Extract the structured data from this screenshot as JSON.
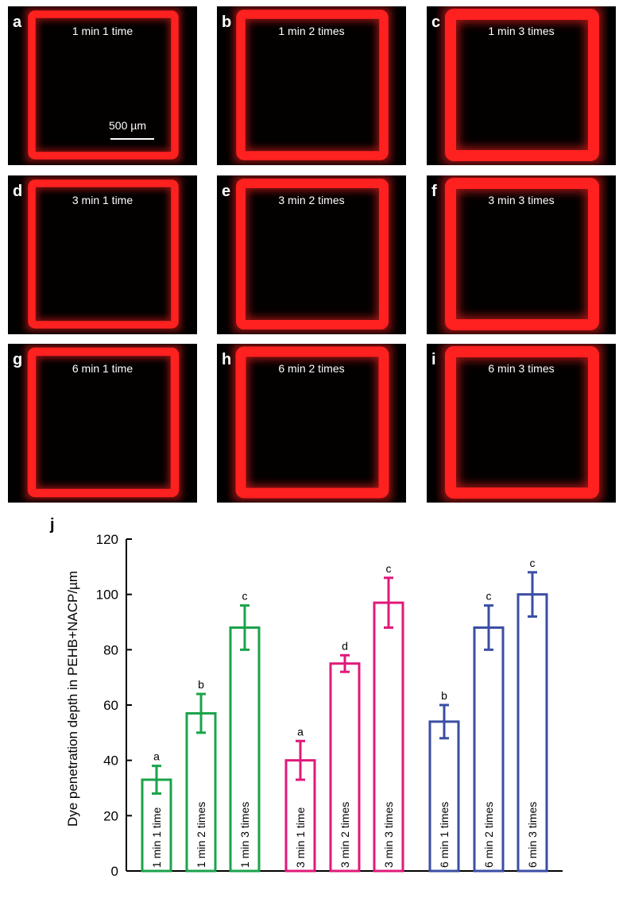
{
  "figure": {
    "panels": [
      {
        "letter": "a",
        "condition": "1 min 1 time",
        "intensity": 0.55
      },
      {
        "letter": "b",
        "condition": "1 min 2 times",
        "intensity": 0.75
      },
      {
        "letter": "c",
        "condition": "1 min 3 times",
        "intensity": 1.0
      },
      {
        "letter": "d",
        "condition": "3 min 1 time",
        "intensity": 0.55
      },
      {
        "letter": "e",
        "condition": "3 min 2 times",
        "intensity": 0.8
      },
      {
        "letter": "f",
        "condition": "3 min 3 times",
        "intensity": 1.0
      },
      {
        "letter": "g",
        "condition": "6 min 1 time",
        "intensity": 0.65
      },
      {
        "letter": "h",
        "condition": "6 min 2 times",
        "intensity": 0.9
      },
      {
        "letter": "i",
        "condition": "6 min 3 times",
        "intensity": 1.0
      }
    ],
    "scale_bar_label": "500 µm",
    "chart_letter": "j",
    "colors": {
      "fluorescence": "#ff2020",
      "panel_bg": "#030000"
    }
  },
  "chart_data": {
    "type": "bar",
    "ylabel": "Dye penetration depth in PEHB+NACP/µm",
    "ylim": [
      0,
      120
    ],
    "yticks": [
      0,
      20,
      40,
      60,
      80,
      100,
      120
    ],
    "bar_fill": "none",
    "bars": [
      {
        "label": "1 min 1 time",
        "value": 33,
        "error": 5,
        "letter": "a",
        "color": "#1aa34a",
        "group": 0
      },
      {
        "label": "1 min 2 times",
        "value": 57,
        "error": 7,
        "letter": "b",
        "color": "#1aa34a",
        "group": 0
      },
      {
        "label": "1 min 3 times",
        "value": 88,
        "error": 8,
        "letter": "c",
        "color": "#1aa34a",
        "group": 0
      },
      {
        "label": "3 min 1 time",
        "value": 40,
        "error": 7,
        "letter": "a",
        "color": "#e0197a",
        "group": 1
      },
      {
        "label": "3 min 2 times",
        "value": 75,
        "error": 3,
        "letter": "d",
        "color": "#e0197a",
        "group": 1
      },
      {
        "label": "3 min 3 times",
        "value": 97,
        "error": 9,
        "letter": "c",
        "color": "#e0197a",
        "group": 1
      },
      {
        "label": "6 min 1 times",
        "value": 54,
        "error": 6,
        "letter": "b",
        "color": "#3a4ea3",
        "group": 2
      },
      {
        "label": "6 min 2 times",
        "value": 88,
        "error": 8,
        "letter": "c",
        "color": "#3a4ea3",
        "group": 2
      },
      {
        "label": "6 min 3 times",
        "value": 100,
        "error": 8,
        "letter": "c",
        "color": "#3a4ea3",
        "group": 2
      }
    ]
  }
}
